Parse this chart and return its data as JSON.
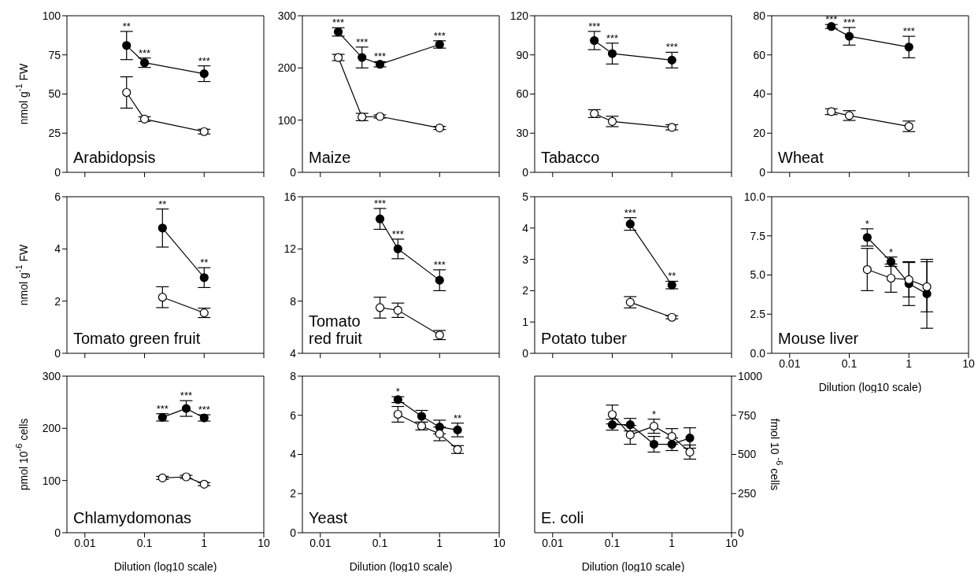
{
  "chart_data": [
    {
      "type": "line",
      "title": "Arabidopsis",
      "ylabel": "nmol g$^{-1}$ FW",
      "x": [
        0.05,
        0.1,
        1
      ],
      "xlim": [
        0.005,
        10
      ],
      "xticks": [
        0.01,
        0.1,
        1,
        10
      ],
      "log": "x",
      "ylim": [
        0,
        100
      ],
      "yticks": [
        0,
        25,
        50,
        75,
        100
      ],
      "tick_labels": "y",
      "marker": "circle",
      "line_style": "solid",
      "series": [
        {
          "color": "#000000",
          "values": [
            81,
            70,
            63
          ],
          "errors": [
            9,
            3,
            5
          ]
        },
        {
          "color": "#ffffff",
          "values": [
            51,
            34,
            26
          ],
          "errors": [
            10,
            1.5,
            1.5
          ]
        }
      ],
      "annotations": [
        {
          "text": "**",
          "x": 0.05,
          "y": 90
        },
        {
          "text": "***",
          "x": 0.1,
          "y": 73
        },
        {
          "text": "***",
          "x": 1,
          "y": 68
        }
      ]
    },
    {
      "type": "line",
      "title": "Maize",
      "x": [
        0.02,
        0.05,
        0.1,
        1
      ],
      "xlim": [
        0.005,
        10
      ],
      "xticks": [
        0.01,
        0.1,
        1,
        10
      ],
      "log": "x",
      "ylim": [
        0,
        300
      ],
      "yticks": [
        0,
        100,
        200,
        300
      ],
      "tick_labels": "y",
      "marker": "circle",
      "line_style": "solid",
      "series": [
        {
          "color": "#000000",
          "values": [
            269,
            220,
            207,
            245
          ],
          "errors": [
            8,
            20,
            5,
            7
          ]
        },
        {
          "color": "#ffffff",
          "values": [
            220,
            106,
            107,
            85
          ],
          "errors": [
            6,
            7,
            3,
            3
          ]
        }
      ],
      "annotations": [
        {
          "text": "***",
          "x": 0.02,
          "y": 277
        },
        {
          "text": "***",
          "x": 0.05,
          "y": 240
        },
        {
          "text": "***",
          "x": 0.1,
          "y": 212
        },
        {
          "text": "***",
          "x": 1,
          "y": 252
        }
      ]
    },
    {
      "type": "line",
      "title": "Tabacco",
      "x": [
        0.05,
        0.1,
        1
      ],
      "xlim": [
        0.005,
        10
      ],
      "xticks": [
        0.01,
        0.1,
        1,
        10
      ],
      "log": "x",
      "ylim": [
        0,
        120
      ],
      "yticks": [
        0,
        30,
        60,
        90,
        120
      ],
      "tick_labels": "y",
      "marker": "circle",
      "line_style": "solid",
      "series": [
        {
          "color": "#000000",
          "values": [
            101,
            91,
            86
          ],
          "errors": [
            7,
            8,
            6
          ]
        },
        {
          "color": "#ffffff",
          "values": [
            45,
            39,
            34.5
          ],
          "errors": [
            3,
            4,
            2
          ]
        }
      ],
      "annotations": [
        {
          "text": "***",
          "x": 0.05,
          "y": 108
        },
        {
          "text": "***",
          "x": 0.1,
          "y": 99
        },
        {
          "text": "***",
          "x": 1,
          "y": 92
        }
      ]
    },
    {
      "type": "line",
      "title": "Wheat",
      "x": [
        0.05,
        0.1,
        1
      ],
      "xlim": [
        0.005,
        10
      ],
      "xticks": [
        0.01,
        0.1,
        1,
        10
      ],
      "log": "x",
      "ylim": [
        0,
        80
      ],
      "yticks": [
        0,
        20,
        40,
        60,
        80
      ],
      "tick_labels": "y",
      "marker": "circle",
      "line_style": "solid",
      "series": [
        {
          "color": "#000000",
          "values": [
            74.5,
            69.5,
            64
          ],
          "errors": [
            1,
            4.5,
            5.5
          ]
        },
        {
          "color": "#ffffff",
          "values": [
            31,
            29,
            23.5
          ],
          "errors": [
            1.5,
            2.5,
            2.7
          ]
        }
      ],
      "annotations": [
        {
          "text": "***",
          "x": 0.05,
          "y": 75.5
        },
        {
          "text": "***",
          "x": 0.1,
          "y": 74
        },
        {
          "text": "***",
          "x": 1,
          "y": 69.5
        }
      ]
    },
    {
      "type": "line",
      "title": "Tomato green fruit",
      "ylabel": "nmol g$^{-1}$ FW",
      "x": [
        0.2,
        1
      ],
      "xlim": [
        0.005,
        10
      ],
      "xticks": [
        0.01,
        0.1,
        1,
        10
      ],
      "log": "x",
      "ylim": [
        0,
        6
      ],
      "yticks": [
        0,
        2,
        4,
        6
      ],
      "tick_labels": "y",
      "marker": "circle",
      "line_style": "solid",
      "series": [
        {
          "color": "#000000",
          "values": [
            4.8,
            2.9
          ],
          "errors": [
            0.73,
            0.38
          ]
        },
        {
          "color": "#ffffff",
          "values": [
            2.15,
            1.55
          ],
          "errors": [
            0.4,
            0.18
          ]
        }
      ],
      "annotations": [
        {
          "text": "**",
          "x": 0.2,
          "y": 5.53
        },
        {
          "text": "**",
          "x": 1,
          "y": 3.28
        }
      ]
    },
    {
      "type": "line",
      "title": "Tomato\nred fruit",
      "x": [
        0.1,
        0.2,
        1
      ],
      "xlim": [
        0.005,
        10
      ],
      "xticks": [
        0.01,
        0.1,
        1,
        10
      ],
      "log": "x",
      "ylim": [
        4,
        16
      ],
      "yticks": [
        4,
        8,
        12,
        16
      ],
      "tick_labels": "y",
      "marker": "circle",
      "line_style": "solid",
      "series": [
        {
          "color": "#000000",
          "values": [
            14.3,
            12,
            9.6
          ],
          "errors": [
            0.8,
            0.75,
            0.8
          ]
        },
        {
          "color": "#ffffff",
          "values": [
            7.5,
            7.3,
            5.4
          ],
          "errors": [
            0.8,
            0.55,
            0.35
          ]
        }
      ],
      "annotations": [
        {
          "text": "***",
          "x": 0.1,
          "y": 15.1
        },
        {
          "text": "***",
          "x": 0.2,
          "y": 12.75
        },
        {
          "text": "***",
          "x": 1,
          "y": 10.4
        }
      ]
    },
    {
      "type": "line",
      "title": "Potato tuber",
      "x": [
        0.2,
        1
      ],
      "xlim": [
        0.005,
        10
      ],
      "xticks": [
        0.01,
        0.1,
        1,
        10
      ],
      "log": "x",
      "ylim": [
        0,
        5
      ],
      "yticks": [
        0,
        1,
        2,
        3,
        4,
        5
      ],
      "tick_labels": "y",
      "marker": "circle",
      "line_style": "solid",
      "series": [
        {
          "color": "#000000",
          "values": [
            4.13,
            2.18
          ],
          "errors": [
            0.2,
            0.12
          ]
        },
        {
          "color": "#ffffff",
          "values": [
            1.63,
            1.15
          ],
          "errors": [
            0.18,
            0.05
          ]
        }
      ],
      "annotations": [
        {
          "text": "***",
          "x": 0.2,
          "y": 4.33
        },
        {
          "text": "**",
          "x": 1,
          "y": 2.3
        }
      ]
    },
    {
      "type": "line",
      "title": "Mouse liver",
      "xlabel": "Dilution (log10 scale)",
      "x": [
        0.2,
        0.5,
        1,
        2
      ],
      "xlim": [
        0.005,
        10
      ],
      "xticks": [
        0.01,
        0.1,
        1,
        10
      ],
      "log": "x",
      "ylim": [
        0,
        10
      ],
      "yticks": [
        {
          "value": 0,
          "label": "0.0"
        },
        {
          "value": 2.5,
          "label": "2.5"
        },
        {
          "value": 5,
          "label": "5.0"
        },
        {
          "value": 7.5,
          "label": "7.5"
        },
        {
          "value": 10,
          "label": "10.0"
        }
      ],
      "marker": "circle",
      "line_style": "solid",
      "series": [
        {
          "color": "#000000",
          "values": [
            7.4,
            5.85,
            4.45,
            3.8
          ],
          "errors": [
            0.55,
            0.3,
            1.4,
            2.2
          ]
        },
        {
          "color": "#ffffff",
          "values": [
            5.35,
            4.8,
            4.7,
            4.25
          ],
          "errors": [
            1.35,
            0.9,
            1.1,
            1.6
          ]
        }
      ],
      "annotations": [
        {
          "text": "*",
          "x": 0.2,
          "y": 7.95
        },
        {
          "text": "*",
          "x": 0.5,
          "y": 6.15
        }
      ]
    },
    {
      "type": "line",
      "title": "Chlamydomonas",
      "ylabel": "pmol 10$^{-6}$ cells",
      "xlabel": "Dilution (log10 scale)",
      "x": [
        0.2,
        0.5,
        1
      ],
      "xlim": [
        0.005,
        10
      ],
      "xticks": [
        0.01,
        0.1,
        1,
        10
      ],
      "log": "x",
      "ylim": [
        0,
        300
      ],
      "yticks": [
        0,
        100,
        200,
        300
      ],
      "marker": "circle",
      "line_style": "solid",
      "series": [
        {
          "color": "#000000",
          "values": [
            221,
            238,
            220
          ],
          "errors": [
            7,
            15,
            6
          ]
        },
        {
          "color": "#ffffff",
          "values": [
            105,
            107,
            93
          ],
          "errors": [
            3,
            3,
            3
          ]
        }
      ],
      "annotations": [
        {
          "text": "***",
          "x": 0.2,
          "y": 228
        },
        {
          "text": "***",
          "x": 0.5,
          "y": 253
        },
        {
          "text": "***",
          "x": 1,
          "y": 226
        }
      ]
    },
    {
      "type": "line",
      "title": "Yeast",
      "xlabel": "Dilution (log10 scale)",
      "x": [
        0.2,
        0.5,
        1,
        2
      ],
      "xlim": [
        0.005,
        10
      ],
      "xticks": [
        0.01,
        0.1,
        1,
        10
      ],
      "log": "x",
      "ylim": [
        0,
        8
      ],
      "yticks": [
        0,
        2,
        4,
        6,
        8
      ],
      "marker": "circle",
      "line_style": "solid",
      "series": [
        {
          "color": "#000000",
          "values": [
            6.8,
            5.95,
            5.4,
            5.25
          ],
          "errors": [
            0.15,
            0.3,
            0.35,
            0.35
          ]
        },
        {
          "color": "#ffffff",
          "values": [
            6.05,
            5.45,
            5.05,
            4.25
          ],
          "errors": [
            0.4,
            0.2,
            0.35,
            0.2
          ]
        }
      ],
      "annotations": [
        {
          "text": "*",
          "x": 0.2,
          "y": 6.95
        },
        {
          "text": "**",
          "x": 2,
          "y": 5.6
        }
      ]
    },
    {
      "type": "line",
      "title": "E. coli",
      "ylabel": "fmol 10 $^{-6}$ cells",
      "xlabel": "Dilution (log10 scale)",
      "x": [
        0.1,
        0.2,
        0.5,
        1,
        2
      ],
      "xlim": [
        0.005,
        10
      ],
      "xticks": [
        0.01,
        0.1,
        1,
        10
      ],
      "log": "x",
      "ylim": [
        0,
        1000
      ],
      "yticks": [
        0,
        250,
        500,
        750,
        1000
      ],
      "marker": "circle",
      "line_style": "solid",
      "series": [
        {
          "color": "#000000",
          "values": [
            690,
            690,
            565,
            565,
            605
          ],
          "errors": [
            35,
            40,
            50,
            40,
            65
          ]
        },
        {
          "color": "#ffffff",
          "values": [
            755,
            625,
            680,
            615,
            515
          ],
          "errors": [
            60,
            60,
            45,
            50,
            45
          ]
        }
      ],
      "annotations": [
        {
          "text": "*",
          "x": 0.5,
          "y": 725
        }
      ]
    }
  ]
}
